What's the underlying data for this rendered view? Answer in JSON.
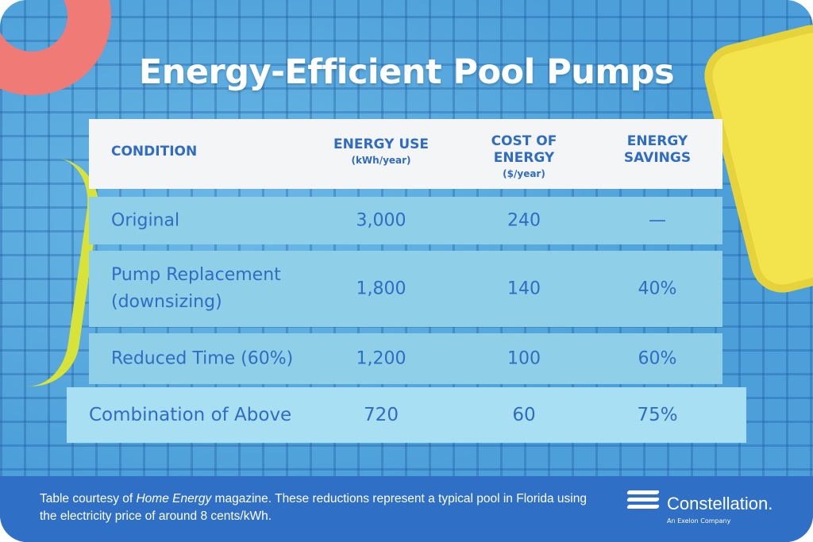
{
  "title": "Energy-Efficient Pool Pumps",
  "colors": {
    "background": "#4c9fd9",
    "text": "#2f6cc4",
    "row": "#8fcfe8",
    "highlight_row": "#a9dff3",
    "footer": "#2f6fc6"
  },
  "table": {
    "headers": [
      {
        "label": "CONDITION",
        "unit": ""
      },
      {
        "label": "ENERGY USE",
        "unit": "(kWh/year)"
      },
      {
        "label": "COST OF ENERGY",
        "unit": "($/year)"
      },
      {
        "label": "ENERGY SAVINGS",
        "unit": ""
      }
    ],
    "rows": [
      {
        "condition": "Original",
        "energy_use": "3,000",
        "cost": "240",
        "savings": "—"
      },
      {
        "condition": "Pump Replacement (downsizing)",
        "energy_use": "1,800",
        "cost": "140",
        "savings": "40%"
      },
      {
        "condition": "Reduced Time (60%)",
        "energy_use": "1,200",
        "cost": "100",
        "savings": "60%"
      },
      {
        "condition": "Combination of Above",
        "energy_use": "720",
        "cost": "60",
        "savings": "75%"
      }
    ]
  },
  "footer": {
    "text_before": "Table courtesy of ",
    "text_italic": "Home Energy",
    "text_after": " magazine. These reductions represent a typical pool in Florida using the electricity price of around 8 cents/kWh.",
    "logo_name": "Constellation.",
    "logo_sub": "An Exelon Company"
  }
}
